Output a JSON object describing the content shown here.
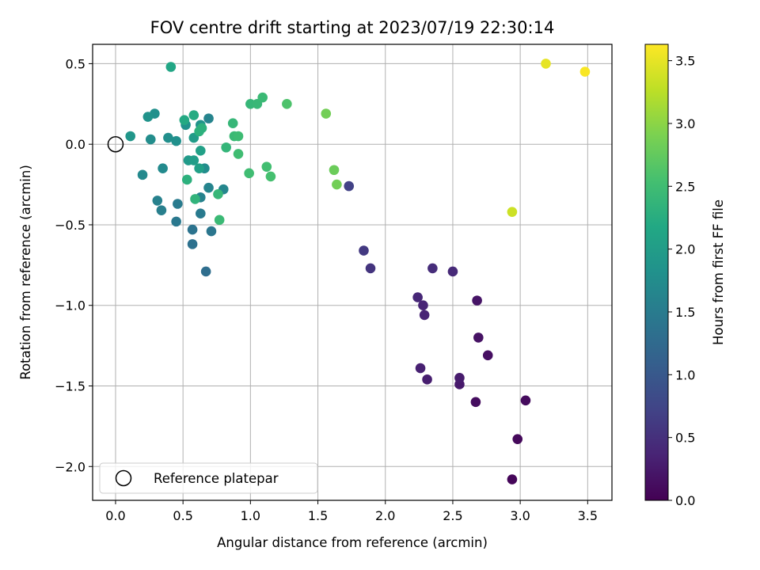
{
  "chart_data": {
    "type": "scatter",
    "title": "FOV centre drift starting at 2023/07/19 22:30:14",
    "xlabel": "Angular distance from reference (arcmin)",
    "ylabel": "Rotation from reference (arcmin)",
    "colorbar_label": "Hours from first FF file",
    "xlim": [
      -0.17,
      3.68
    ],
    "ylim": [
      -2.21,
      0.62
    ],
    "xticks": [
      0.0,
      0.5,
      1.0,
      1.5,
      2.0,
      2.5,
      3.0,
      3.5
    ],
    "xtick_labels": [
      "0.0",
      "0.5",
      "1.0",
      "1.5",
      "2.0",
      "2.5",
      "3.0",
      "3.5"
    ],
    "yticks": [
      0.5,
      0.0,
      -0.5,
      -1.0,
      -1.5,
      -2.0
    ],
    "ytick_labels": [
      "0.5",
      "0.0",
      "−0.5",
      "−1.0",
      "−1.5",
      "−2.0"
    ],
    "colorbar_range": [
      0.0,
      3.63
    ],
    "colorbar_ticks": [
      0.0,
      0.5,
      1.0,
      1.5,
      2.0,
      2.5,
      3.0,
      3.5
    ],
    "colorbar_tick_labels": [
      "0.0",
      "0.5",
      "1.0",
      "1.5",
      "2.0",
      "2.5",
      "3.0",
      "3.5"
    ],
    "colormap": "viridis",
    "grid": true,
    "legend": {
      "position": "lower-left",
      "label": "Reference platepar",
      "marker": "open-circle"
    },
    "reference_point": {
      "x": 0.0,
      "y": 0.0
    },
    "points": [
      {
        "x": 2.94,
        "y": -2.08,
        "t": 0.05
      },
      {
        "x": 2.98,
        "y": -1.83,
        "t": 0.08
      },
      {
        "x": 3.04,
        "y": -1.59,
        "t": 0.1
      },
      {
        "x": 2.67,
        "y": -1.6,
        "t": 0.12
      },
      {
        "x": 2.76,
        "y": -1.31,
        "t": 0.15
      },
      {
        "x": 2.69,
        "y": -1.2,
        "t": 0.18
      },
      {
        "x": 2.68,
        "y": -0.97,
        "t": 0.2
      },
      {
        "x": 2.55,
        "y": -1.49,
        "t": 0.25
      },
      {
        "x": 2.55,
        "y": -1.45,
        "t": 0.28
      },
      {
        "x": 2.31,
        "y": -1.46,
        "t": 0.3
      },
      {
        "x": 2.26,
        "y": -1.39,
        "t": 0.33
      },
      {
        "x": 2.29,
        "y": -1.06,
        "t": 0.36
      },
      {
        "x": 2.28,
        "y": -1.0,
        "t": 0.38
      },
      {
        "x": 2.24,
        "y": -0.95,
        "t": 0.4
      },
      {
        "x": 2.5,
        "y": -0.79,
        "t": 0.43
      },
      {
        "x": 2.35,
        "y": -0.77,
        "t": 0.47
      },
      {
        "x": 1.89,
        "y": -0.77,
        "t": 0.55
      },
      {
        "x": 1.84,
        "y": -0.66,
        "t": 0.6
      },
      {
        "x": 1.73,
        "y": -0.26,
        "t": 0.7
      },
      {
        "x": 0.67,
        "y": -0.79,
        "t": 1.3
      },
      {
        "x": 0.57,
        "y": -0.62,
        "t": 1.35
      },
      {
        "x": 0.57,
        "y": -0.53,
        "t": 1.38
      },
      {
        "x": 0.71,
        "y": -0.54,
        "t": 1.42
      },
      {
        "x": 0.45,
        "y": -0.48,
        "t": 1.45
      },
      {
        "x": 0.63,
        "y": -0.43,
        "t": 1.48
      },
      {
        "x": 0.46,
        "y": -0.37,
        "t": 1.5
      },
      {
        "x": 0.34,
        "y": -0.41,
        "t": 1.55
      },
      {
        "x": 0.31,
        "y": -0.35,
        "t": 1.58
      },
      {
        "x": 0.63,
        "y": -0.33,
        "t": 1.6
      },
      {
        "x": 0.69,
        "y": -0.27,
        "t": 1.62
      },
      {
        "x": 0.8,
        "y": -0.28,
        "t": 1.65
      },
      {
        "x": 0.2,
        "y": -0.19,
        "t": 1.7
      },
      {
        "x": 0.35,
        "y": -0.15,
        "t": 1.72
      },
      {
        "x": 0.66,
        "y": -0.15,
        "t": 1.75
      },
      {
        "x": 0.26,
        "y": 0.03,
        "t": 1.75
      },
      {
        "x": 0.39,
        "y": 0.04,
        "t": 1.78
      },
      {
        "x": 0.45,
        "y": 0.02,
        "t": 1.8
      },
      {
        "x": 0.69,
        "y": 0.16,
        "t": 1.62
      },
      {
        "x": 0.29,
        "y": 0.19,
        "t": 1.8
      },
      {
        "x": 0.24,
        "y": 0.17,
        "t": 1.85
      },
      {
        "x": 0.52,
        "y": 0.12,
        "t": 1.82
      },
      {
        "x": 0.63,
        "y": 0.12,
        "t": 1.85
      },
      {
        "x": 0.11,
        "y": 0.05,
        "t": 1.9
      },
      {
        "x": 0.54,
        "y": -0.1,
        "t": 1.95
      },
      {
        "x": 0.58,
        "y": -0.1,
        "t": 2.0
      },
      {
        "x": 0.62,
        "y": -0.15,
        "t": 2.05
      },
      {
        "x": 0.58,
        "y": 0.04,
        "t": 1.98
      },
      {
        "x": 0.63,
        "y": -0.04,
        "t": 2.05
      },
      {
        "x": 0.41,
        "y": 0.48,
        "t": 2.15
      },
      {
        "x": 0.51,
        "y": 0.15,
        "t": 2.2
      },
      {
        "x": 0.58,
        "y": 0.18,
        "t": 2.22
      },
      {
        "x": 0.62,
        "y": 0.08,
        "t": 2.3
      },
      {
        "x": 0.64,
        "y": 0.1,
        "t": 2.3
      },
      {
        "x": 0.53,
        "y": -0.22,
        "t": 2.3
      },
      {
        "x": 0.59,
        "y": -0.34,
        "t": 2.35
      },
      {
        "x": 0.76,
        "y": -0.31,
        "t": 2.4
      },
      {
        "x": 0.77,
        "y": -0.47,
        "t": 2.45
      },
      {
        "x": 0.82,
        "y": -0.02,
        "t": 2.38
      },
      {
        "x": 0.87,
        "y": 0.13,
        "t": 2.4
      },
      {
        "x": 0.88,
        "y": 0.05,
        "t": 2.45
      },
      {
        "x": 0.91,
        "y": 0.05,
        "t": 2.48
      },
      {
        "x": 0.91,
        "y": -0.06,
        "t": 2.5
      },
      {
        "x": 1.0,
        "y": 0.25,
        "t": 2.4
      },
      {
        "x": 1.05,
        "y": 0.25,
        "t": 2.42
      },
      {
        "x": 1.09,
        "y": 0.29,
        "t": 2.45
      },
      {
        "x": 0.99,
        "y": -0.18,
        "t": 2.5
      },
      {
        "x": 1.12,
        "y": -0.14,
        "t": 2.52
      },
      {
        "x": 1.15,
        "y": -0.2,
        "t": 2.55
      },
      {
        "x": 1.27,
        "y": 0.25,
        "t": 2.6
      },
      {
        "x": 1.56,
        "y": 0.19,
        "t": 2.85
      },
      {
        "x": 1.62,
        "y": -0.16,
        "t": 2.8
      },
      {
        "x": 1.64,
        "y": -0.25,
        "t": 2.85
      },
      {
        "x": 2.94,
        "y": -0.42,
        "t": 3.35
      },
      {
        "x": 3.19,
        "y": 0.5,
        "t": 3.5
      },
      {
        "x": 3.48,
        "y": 0.45,
        "t": 3.6
      }
    ]
  }
}
